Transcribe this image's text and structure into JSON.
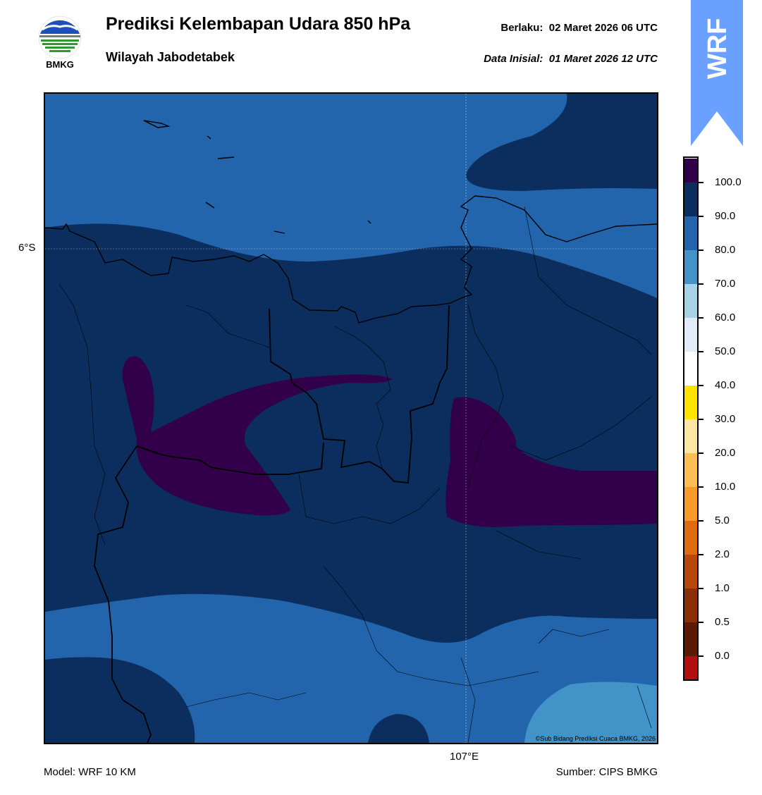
{
  "header": {
    "title": "Prediksi Kelembapan Udara 850 hPa",
    "subtitle": "Wilayah Jabodetabek",
    "valid_label": "Berlaku:",
    "valid_time": "02 Maret 2026 06 UTC",
    "init_label": "Data Inisial:",
    "init_time": "01 Maret 2026 12 UTC"
  },
  "logo": {
    "text": "BMKG",
    "icon": "bmkg-logo"
  },
  "badge": {
    "text": "WRF",
    "color": "#6aa0ff"
  },
  "map": {
    "lat_label": "6°S",
    "lon_label": "107°E",
    "credit": "©Sub Bidang Prediksi Cuaca BMKG, 2026",
    "colors": {
      "r80_90": "#2265ad",
      "r90_100": "#0b2e5e",
      "r100": "#32004a",
      "r70_80": "#4293c8"
    }
  },
  "colorbar": {
    "labels": [
      "100.0",
      "90.0",
      "80.0",
      "70.0",
      "60.0",
      "50.0",
      "40.0",
      "30.0",
      "20.0",
      "10.0",
      "5.0",
      "2.0",
      "1.0",
      "0.5",
      "0.0"
    ],
    "colors": [
      "#32004a",
      "#0b2e5e",
      "#2265ad",
      "#4293c8",
      "#a8d3e6",
      "#e2ecf6",
      "#ffffff",
      "#ffe300",
      "#fde6a2",
      "#fdbe54",
      "#f99a2b",
      "#e06a0f",
      "#b8470b",
      "#8a2f07",
      "#5c1a05",
      "#b30e10",
      "#e8352c"
    ]
  },
  "footer": {
    "model": "Model: WRF 10 KM",
    "source": "Sumber: CIPS BMKG"
  }
}
